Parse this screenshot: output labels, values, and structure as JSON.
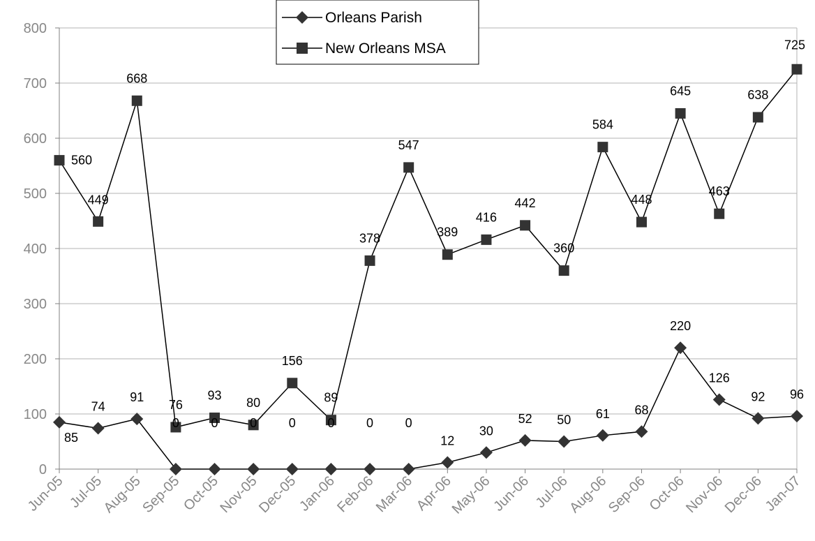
{
  "chart_data": {
    "type": "line",
    "categories": [
      "Jun-05",
      "Jul-05",
      "Aug-05",
      "Sep-05",
      "Oct-05",
      "Nov-05",
      "Dec-05",
      "Jan-06",
      "Feb-06",
      "Mar-06",
      "Apr-06",
      "May-06",
      "Jun-06",
      "Jul-06",
      "Aug-06",
      "Sep-06",
      "Oct-06",
      "Nov-06",
      "Dec-06",
      "Jan-07"
    ],
    "series": [
      {
        "name": "Orleans Parish",
        "marker": "diamond",
        "values": [
          85,
          74,
          91,
          0,
          0,
          0,
          0,
          0,
          0,
          0,
          12,
          30,
          52,
          50,
          61,
          68,
          220,
          126,
          92,
          96
        ]
      },
      {
        "name": "New Orleans MSA",
        "marker": "square",
        "values": [
          560,
          449,
          668,
          76,
          93,
          80,
          156,
          89,
          378,
          547,
          389,
          416,
          442,
          360,
          584,
          448,
          645,
          463,
          638,
          725
        ]
      }
    ],
    "ylim": [
      0,
      800
    ],
    "yticks": [
      0,
      100,
      200,
      300,
      400,
      500,
      600,
      700,
      800
    ],
    "grid": true,
    "legend_position": "top-center",
    "colors": {
      "line": "#000000",
      "marker": "#333333",
      "grid": "#b3b3b3",
      "tick_text": "#888888"
    }
  }
}
